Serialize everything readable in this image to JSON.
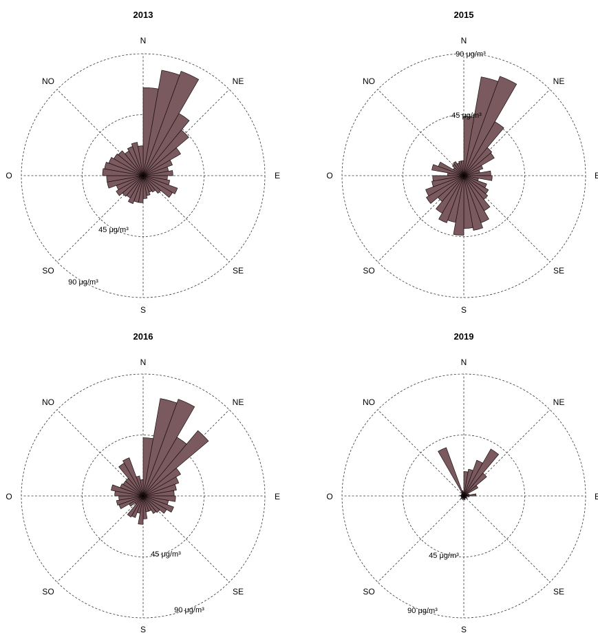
{
  "chart_data": [
    {
      "type": "polar-bar",
      "title": "2013",
      "directions": [
        "N",
        "NE",
        "E",
        "SE",
        "S",
        "SO",
        "O",
        "NO"
      ],
      "rings": [
        45,
        90
      ],
      "ring_labels": [
        "45 μg/m³",
        "90 μg/m³"
      ],
      "rmax": 90,
      "bins_deg": 10,
      "values": [
        65,
        79,
        82,
        53,
        44,
        32,
        23,
        19,
        22,
        18,
        20,
        27,
        25,
        17,
        14,
        13,
        15,
        17,
        20,
        20,
        22,
        19,
        20,
        23,
        21,
        27,
        27,
        30,
        29,
        27,
        25,
        24,
        21,
        23,
        25,
        22
      ]
    },
    {
      "type": "polar-bar",
      "title": "2015",
      "directions": [
        "N",
        "NE",
        "E",
        "SE",
        "S",
        "SO",
        "O",
        "NO"
      ],
      "rings": [
        45,
        90
      ],
      "ring_labels": [
        "45 μg/m³",
        "90 μg/m³"
      ],
      "rmax": 90,
      "bins_deg": 10,
      "values": [
        44,
        74,
        78,
        46,
        27,
        26,
        15,
        12,
        20,
        21,
        11,
        18,
        21,
        23,
        30,
        37,
        41,
        39,
        44,
        35,
        37,
        32,
        25,
        32,
        30,
        24,
        23,
        12,
        24,
        20,
        9,
        11,
        12,
        10,
        11,
        11
      ]
    },
    {
      "type": "polar-bar",
      "title": "2016",
      "directions": [
        "N",
        "NE",
        "E",
        "SE",
        "S",
        "SO",
        "O",
        "NO"
      ],
      "rings": [
        45,
        90
      ],
      "ring_labels": [
        "45 μg/m³",
        "90 μg/m³"
      ],
      "rmax": 90,
      "bins_deg": 10,
      "values": [
        43,
        73,
        76,
        50,
        63,
        32,
        28,
        25,
        23,
        24,
        19,
        24,
        20,
        16,
        15,
        12,
        12,
        17,
        21,
        13,
        17,
        18,
        8,
        12,
        19,
        20,
        18,
        21,
        24,
        18,
        17,
        17,
        28,
        30,
        15,
        12
      ]
    },
    {
      "type": "polar-bar",
      "title": "2019",
      "directions": [
        "N",
        "NE",
        "E",
        "SE",
        "S",
        "SO",
        "O",
        "NO"
      ],
      "rings": [
        45,
        90
      ],
      "ring_labels": [
        "45 μg/m³",
        "90 μg/m³"
      ],
      "rmax": 90,
      "bins_deg": 10,
      "values": [
        18,
        20,
        28,
        40,
        22,
        12,
        3,
        4,
        9,
        4,
        2,
        2,
        3,
        2,
        2,
        2,
        3,
        2,
        2,
        3,
        2,
        2,
        3,
        2,
        2,
        2,
        2,
        3,
        2,
        2,
        2,
        2,
        3,
        38,
        4,
        3
      ]
    }
  ]
}
